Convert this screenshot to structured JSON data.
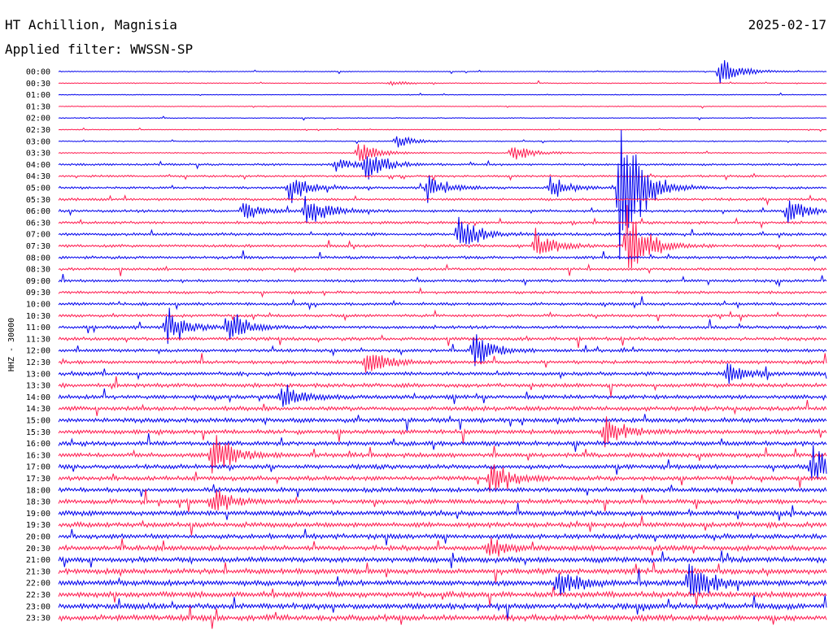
{
  "header": {
    "station": "HT Achillion, Magnisia",
    "date": "2025-02-17",
    "filter": "Applied filter: WWSSN-SP"
  },
  "chart_data": {
    "type": "line",
    "title": "HT Achillion, Magnisia",
    "subtitle": "Applied filter: WWSSN-SP",
    "date": "2025-02-17",
    "ylabel": "HHZ - 30000",
    "xlabel": "",
    "colors": [
      "#0000ee",
      "#ff1a4f"
    ],
    "grid": false,
    "rows": [
      "00:00",
      "00:30",
      "01:00",
      "01:30",
      "02:00",
      "02:30",
      "03:00",
      "03:30",
      "04:00",
      "04:30",
      "05:00",
      "05:30",
      "06:00",
      "06:30",
      "07:00",
      "07:30",
      "08:00",
      "08:30",
      "09:00",
      "09:30",
      "10:00",
      "10:30",
      "11:00",
      "11:30",
      "12:00",
      "12:30",
      "13:00",
      "13:30",
      "14:00",
      "14:30",
      "15:00",
      "15:30",
      "16:00",
      "16:30",
      "17:00",
      "17:30",
      "18:00",
      "18:30",
      "19:00",
      "19:30",
      "20:00",
      "20:30",
      "21:00",
      "21:30",
      "22:00",
      "22:30",
      "23:00",
      "23:30"
    ],
    "noise_level": [
      0.4,
      0.4,
      0.4,
      0.4,
      0.4,
      0.4,
      0.5,
      0.6,
      1.0,
      1.0,
      1.1,
      1.2,
      1.3,
      1.3,
      1.4,
      1.4,
      1.4,
      1.3,
      1.3,
      1.3,
      1.4,
      1.4,
      1.5,
      1.6,
      1.6,
      1.7,
      1.8,
      1.9,
      2.0,
      2.1,
      2.2,
      2.2,
      2.2,
      2.2,
      2.2,
      2.2,
      2.2,
      2.3,
      2.4,
      2.4,
      2.4,
      2.5,
      2.6,
      2.6,
      2.7,
      2.7,
      2.8,
      2.8
    ],
    "events": [
      {
        "row": "00:00",
        "t": 0.86,
        "amp": 26
      },
      {
        "row": "00:30",
        "t": 0.43,
        "amp": 4
      },
      {
        "row": "03:00",
        "t": 0.44,
        "amp": 10
      },
      {
        "row": "03:30",
        "t": 0.39,
        "amp": 18
      },
      {
        "row": "03:30",
        "t": 0.59,
        "amp": 14
      },
      {
        "row": "04:00",
        "t": 0.36,
        "amp": 10
      },
      {
        "row": "04:00",
        "t": 0.4,
        "amp": 24
      },
      {
        "row": "05:00",
        "t": 0.3,
        "amp": 22
      },
      {
        "row": "05:00",
        "t": 0.48,
        "amp": 22
      },
      {
        "row": "05:00",
        "t": 0.64,
        "amp": 16
      },
      {
        "row": "05:00",
        "t": 0.73,
        "amp": 150
      },
      {
        "row": "06:00",
        "t": 0.24,
        "amp": 14
      },
      {
        "row": "06:00",
        "t": 0.32,
        "amp": 30
      },
      {
        "row": "06:00",
        "t": 0.95,
        "amp": 22
      },
      {
        "row": "07:00",
        "t": 0.52,
        "amp": 30
      },
      {
        "row": "07:30",
        "t": 0.62,
        "amp": 26
      },
      {
        "row": "07:30",
        "t": 0.74,
        "amp": 60
      },
      {
        "row": "11:00",
        "t": 0.14,
        "amp": 30
      },
      {
        "row": "11:00",
        "t": 0.22,
        "amp": 26
      },
      {
        "row": "12:00",
        "t": 0.54,
        "amp": 28
      },
      {
        "row": "12:30",
        "t": 0.4,
        "amp": 22
      },
      {
        "row": "13:00",
        "t": 0.87,
        "amp": 20
      },
      {
        "row": "14:00",
        "t": 0.29,
        "amp": 22
      },
      {
        "row": "15:30",
        "t": 0.71,
        "amp": 26
      },
      {
        "row": "16:30",
        "t": 0.2,
        "amp": 40
      },
      {
        "row": "17:00",
        "t": 0.98,
        "amp": 30
      },
      {
        "row": "17:30",
        "t": 0.56,
        "amp": 28
      },
      {
        "row": "18:30",
        "t": 0.2,
        "amp": 20
      },
      {
        "row": "20:30",
        "t": 0.56,
        "amp": 16
      },
      {
        "row": "22:00",
        "t": 0.65,
        "amp": 24
      },
      {
        "row": "22:00",
        "t": 0.82,
        "amp": 38
      }
    ]
  }
}
